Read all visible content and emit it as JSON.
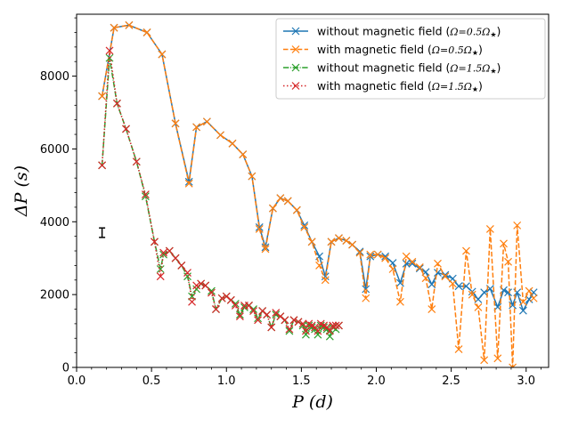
{
  "chart_data": {
    "type": "line",
    "xlabel": "P (d)",
    "ylabel": "ΔP (s)",
    "xlim": [
      0.0,
      3.15
    ],
    "ylim": [
      0,
      9700
    ],
    "xticks": [
      0.0,
      0.5,
      1.0,
      1.5,
      2.0,
      2.5,
      3.0
    ],
    "xtick_labels": [
      "0.0",
      "0.5",
      "1.0",
      "1.5",
      "2.0",
      "2.5",
      "3.0"
    ],
    "yticks": [
      0,
      2000,
      4000,
      6000,
      8000
    ],
    "ytick_labels": [
      "0",
      "2000",
      "4000",
      "6000",
      "8000"
    ],
    "legend_position": "top-right",
    "error_bar": {
      "x": 0.17,
      "y": 3700,
      "half_height": 130
    },
    "series": [
      {
        "name": "without magnetic field (Ω=0.5Ω★)",
        "legend_label": "without magnetic field (",
        "legend_math": "Ω=0.5Ω",
        "color": "#1f77b4",
        "linestyle": "solid",
        "x": [
          0.17,
          0.25,
          0.35,
          0.47,
          0.57,
          0.66,
          0.75,
          0.8,
          0.87,
          0.96,
          1.04,
          1.11,
          1.17,
          1.22,
          1.26,
          1.31,
          1.36,
          1.41,
          1.47,
          1.52,
          1.57,
          1.62,
          1.66,
          1.7,
          1.75,
          1.8,
          1.84,
          1.89,
          1.93,
          1.96,
          2.01,
          2.06,
          2.11,
          2.16,
          2.2,
          2.24,
          2.29,
          2.33,
          2.37,
          2.41,
          2.46,
          2.51,
          2.55,
          2.6,
          2.64,
          2.68,
          2.72,
          2.76,
          2.81,
          2.85,
          2.88,
          2.91,
          2.94,
          2.98,
          3.02,
          3.05
        ],
        "y": [
          7450,
          9330,
          9400,
          9200,
          8600,
          6700,
          5100,
          6600,
          6750,
          6380,
          6150,
          5850,
          5250,
          3850,
          3300,
          4370,
          4650,
          4570,
          4320,
          3900,
          3450,
          3050,
          2500,
          3450,
          3550,
          3480,
          3370,
          3180,
          2150,
          3050,
          3100,
          3050,
          2870,
          2320,
          2850,
          2850,
          2720,
          2620,
          2280,
          2600,
          2540,
          2440,
          2230,
          2230,
          2080,
          1870,
          2060,
          2160,
          1660,
          2120,
          2060,
          1710,
          2060,
          1560,
          1870,
          2060
        ]
      },
      {
        "name": "with magnetic field (Ω=0.5Ω★)",
        "legend_label": "with magnetic field (",
        "legend_math": "Ω=0.5Ω",
        "color": "#ff7f0e",
        "linestyle": "dashed",
        "x": [
          0.17,
          0.25,
          0.35,
          0.47,
          0.57,
          0.66,
          0.75,
          0.8,
          0.87,
          0.96,
          1.04,
          1.11,
          1.17,
          1.22,
          1.26,
          1.31,
          1.36,
          1.41,
          1.47,
          1.52,
          1.57,
          1.62,
          1.66,
          1.7,
          1.75,
          1.8,
          1.84,
          1.89,
          1.93,
          1.96,
          2.01,
          2.06,
          2.11,
          2.16,
          2.2,
          2.24,
          2.29,
          2.33,
          2.37,
          2.41,
          2.46,
          2.51,
          2.55,
          2.6,
          2.64,
          2.68,
          2.72,
          2.76,
          2.81,
          2.85,
          2.88,
          2.91,
          2.94,
          2.98,
          3.02,
          3.05
        ],
        "y": [
          7450,
          9330,
          9400,
          9200,
          8600,
          6700,
          5050,
          6600,
          6750,
          6380,
          6150,
          5850,
          5250,
          3800,
          3250,
          4370,
          4650,
          4570,
          4320,
          3850,
          3450,
          2800,
          2400,
          3450,
          3550,
          3480,
          3370,
          3150,
          1900,
          3100,
          3100,
          3000,
          2700,
          1800,
          3050,
          2900,
          2750,
          2450,
          1600,
          2850,
          2500,
          2300,
          500,
          3200,
          2000,
          1650,
          200,
          3800,
          250,
          3400,
          2900,
          0,
          3900,
          1800,
          2100,
          1900
        ]
      },
      {
        "name": "without magnetic field (Ω=1.5Ω★)",
        "legend_label": "without magnetic field (",
        "legend_math": "Ω=1.5Ω",
        "color": "#2ca02c",
        "linestyle": "dashdot",
        "x": [
          0.17,
          0.22,
          0.27,
          0.33,
          0.4,
          0.46,
          0.52,
          0.56,
          0.58,
          0.62,
          0.66,
          0.7,
          0.74,
          0.77,
          0.8,
          0.83,
          0.86,
          0.9,
          0.93,
          0.97,
          1.0,
          1.03,
          1.06,
          1.09,
          1.12,
          1.15,
          1.18,
          1.21,
          1.24,
          1.27,
          1.3,
          1.33,
          1.36,
          1.39,
          1.42,
          1.45,
          1.48,
          1.51,
          1.53,
          1.55,
          1.57,
          1.59,
          1.61,
          1.63,
          1.65,
          1.67,
          1.69,
          1.71,
          1.73,
          1.75
        ],
        "y": [
          5550,
          8500,
          7250,
          6550,
          5650,
          4700,
          3450,
          2700,
          3100,
          3200,
          3000,
          2800,
          2500,
          1950,
          2150,
          2300,
          2250,
          2100,
          1600,
          1900,
          1950,
          1850,
          1750,
          1450,
          1650,
          1700,
          1600,
          1350,
          1550,
          1450,
          1100,
          1450,
          1400,
          1300,
          1000,
          1300,
          1250,
          1150,
          900,
          1150,
          1100,
          1050,
          900,
          1150,
          1100,
          1050,
          850,
          1100,
          1050,
          1150
        ]
      },
      {
        "name": "with magnetic field (Ω=1.5Ω★)",
        "legend_label": "with magnetic field (",
        "legend_math": "Ω=1.5Ω",
        "color": "#d62728",
        "linestyle": "dotted",
        "x": [
          0.17,
          0.22,
          0.27,
          0.33,
          0.4,
          0.46,
          0.52,
          0.56,
          0.58,
          0.62,
          0.66,
          0.7,
          0.74,
          0.77,
          0.8,
          0.83,
          0.86,
          0.9,
          0.93,
          0.97,
          1.0,
          1.03,
          1.06,
          1.09,
          1.12,
          1.15,
          1.18,
          1.21,
          1.24,
          1.27,
          1.3,
          1.33,
          1.36,
          1.39,
          1.42,
          1.45,
          1.48,
          1.51,
          1.53,
          1.55,
          1.57,
          1.59,
          1.61,
          1.63,
          1.65,
          1.67,
          1.69,
          1.71,
          1.73,
          1.75
        ],
        "y": [
          5550,
          8700,
          7250,
          6550,
          5650,
          4750,
          3450,
          2500,
          3150,
          3200,
          3000,
          2800,
          2600,
          1800,
          2250,
          2300,
          2250,
          2050,
          1600,
          1900,
          1950,
          1850,
          1700,
          1400,
          1700,
          1700,
          1550,
          1300,
          1550,
          1450,
          1100,
          1500,
          1400,
          1300,
          1050,
          1300,
          1250,
          1200,
          1000,
          1200,
          1150,
          1100,
          1000,
          1200,
          1150,
          1100,
          1000,
          1150,
          1150,
          1150
        ]
      }
    ]
  }
}
